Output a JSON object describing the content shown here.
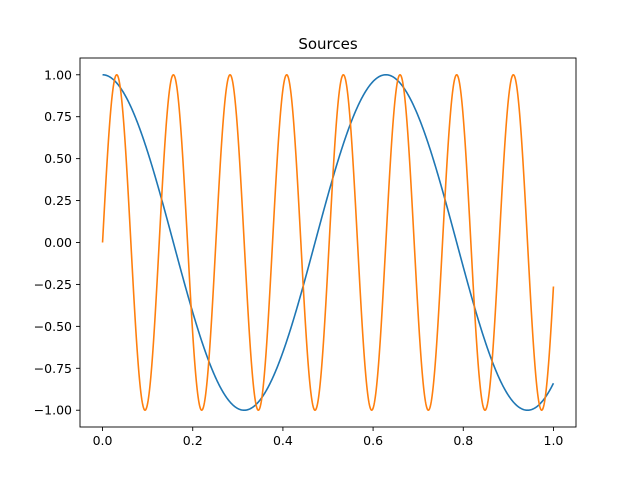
{
  "chart_data": {
    "type": "line",
    "title": "Sources",
    "xlabel": "",
    "ylabel": "",
    "xlim": [
      -0.05,
      1.05
    ],
    "ylim": [
      -1.1,
      1.1
    ],
    "x_ticks": [
      "0.0",
      "0.2",
      "0.4",
      "0.6",
      "0.8",
      "1.0"
    ],
    "y_ticks": [
      "1.00",
      "0.75",
      "0.50",
      "0.25",
      "0.00",
      "−0.25",
      "−0.50",
      "−0.75",
      "−1.00"
    ],
    "grid": false,
    "legend": "none",
    "series": [
      {
        "color": "#1f77b4",
        "function": "cos(10x)",
        "x": [
          0.0,
          0.05,
          0.1,
          0.15,
          0.2,
          0.25,
          0.3,
          0.35,
          0.4,
          0.45,
          0.5,
          0.55,
          0.6,
          0.65,
          0.7,
          0.75,
          0.8,
          0.85,
          0.9,
          0.95,
          1.0
        ],
        "y": [
          1.0,
          0.88,
          0.54,
          0.07,
          -0.42,
          -0.8,
          -0.99,
          -0.94,
          -0.65,
          -0.21,
          0.28,
          0.71,
          0.96,
          0.98,
          0.75,
          0.35,
          -0.15,
          -0.6,
          -0.91,
          -1.0,
          -0.84
        ]
      },
      {
        "color": "#ff7f0e",
        "function": "sin(50x)",
        "x": [
          0.0,
          0.05,
          0.1,
          0.15,
          0.2,
          0.25,
          0.3,
          0.35,
          0.4,
          0.45,
          0.5,
          0.55,
          0.6,
          0.65,
          0.7,
          0.75,
          0.8,
          0.85,
          0.9,
          0.95,
          1.0
        ],
        "y": [
          0.0,
          0.6,
          -0.96,
          0.94,
          -0.54,
          -0.07,
          0.65,
          -0.98,
          0.91,
          -0.48,
          -0.13,
          0.7,
          -0.99,
          0.89,
          -0.42,
          -0.19,
          0.75,
          -1.0,
          0.86,
          -0.36,
          -0.26
        ]
      }
    ]
  }
}
